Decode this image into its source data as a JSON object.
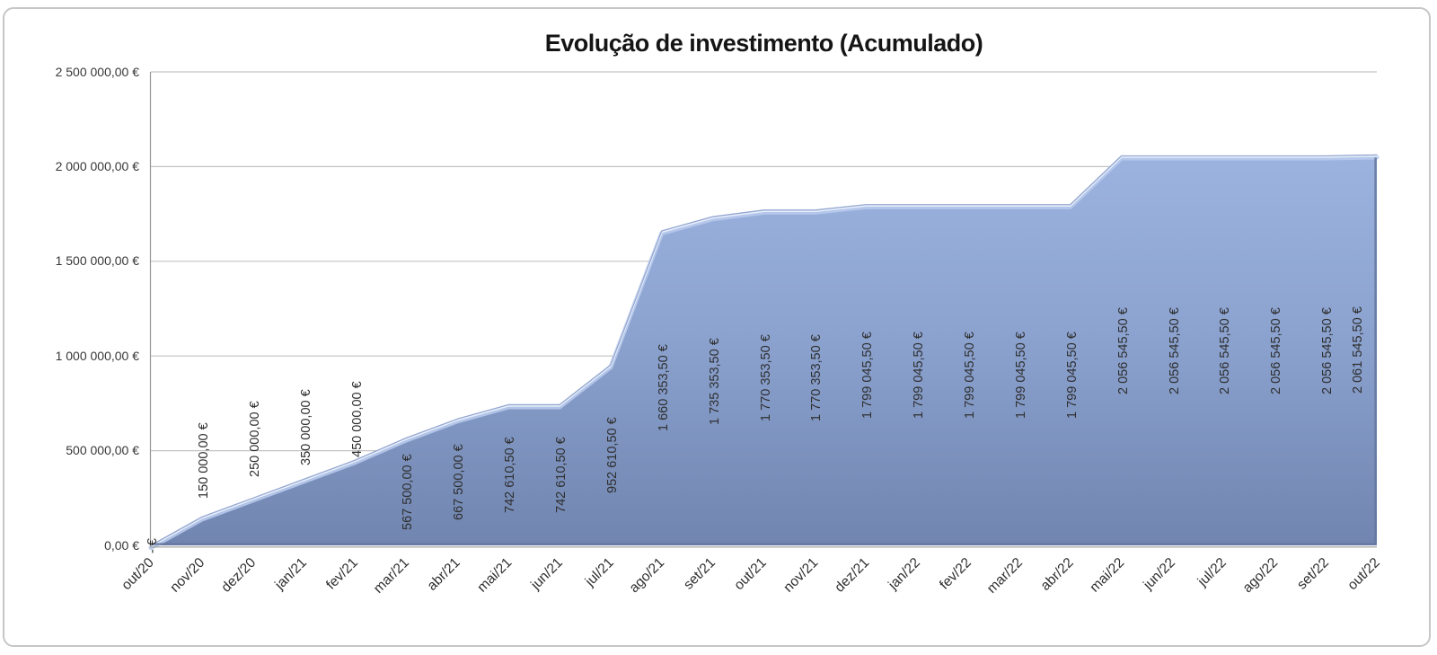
{
  "title": "Evolução de investimento (Acumulado)",
  "chart_data": {
    "type": "area",
    "title": "Evolução de investimento (Acumulado)",
    "categories": [
      "out/20",
      "nov/20",
      "dez/20",
      "jan/21",
      "fev/21",
      "mar/21",
      "abr/21",
      "mai/21",
      "jun/21",
      "jul/21",
      "ago/21",
      "set/21",
      "out/21",
      "nov/21",
      "dez/21",
      "jan/22",
      "fev/22",
      "mar/22",
      "abr/22",
      "mai/22",
      "jun/22",
      "jul/22",
      "ago/22",
      "set/22",
      "out/22"
    ],
    "values": [
      0,
      150000,
      250000,
      350000,
      450000,
      567500,
      667500,
      742610.5,
      742610.5,
      952610.5,
      1660353.5,
      1735353.5,
      1770353.5,
      1770353.5,
      1799045.5,
      1799045.5,
      1799045.5,
      1799045.5,
      1799045.5,
      2056545.5,
      2056545.5,
      2056545.5,
      2056545.5,
      2056545.5,
      2061545.5
    ],
    "data_labels": [
      "- €",
      "150 000,00 €",
      "250 000,00 €",
      "350 000,00 €",
      "450 000,00 €",
      "567 500,00 €",
      "667 500,00 €",
      "742 610,50 €",
      "742 610,50 €",
      "952 610,50 €",
      "1 660 353,50 €",
      "1 735 353,50 €",
      "1 770 353,50 €",
      "1 770 353,50 €",
      "1 799 045,50 €",
      "1 799 045,50 €",
      "1 799 045,50 €",
      "1 799 045,50 €",
      "1 799 045,50 €",
      "2 056 545,50 €",
      "2 056 545,50 €",
      "2 056 545,50 €",
      "2 056 545,50 €",
      "2 056 545,50 €",
      "2 061 545,50 €"
    ],
    "ylim": [
      0,
      2500000
    ],
    "y_ticks": [
      0,
      500000,
      1000000,
      1500000,
      2000000,
      2500000
    ],
    "y_tick_labels": [
      "0,00 €",
      "500 000,00 €",
      "1 000 000,00 €",
      "1 500 000,00 €",
      "2 000 000,00 €",
      "2 500 000,00 €"
    ],
    "xlabel": "",
    "ylabel": "",
    "grid": true,
    "legend": "none",
    "colors": {
      "area_top": "#9CB3E0",
      "area_mid": "#8CA3D0",
      "area_bottom": "#7085AF",
      "edge_highlight_bright": "#E9F0FB",
      "edge_highlight_soft": "#B7C9EC",
      "edge_line": "#94A7D1",
      "edge_dark": "#64779F",
      "gridline": "#C4C4C4",
      "axis": "#979797",
      "text": "#2F2F2F",
      "title": "#151515"
    }
  }
}
